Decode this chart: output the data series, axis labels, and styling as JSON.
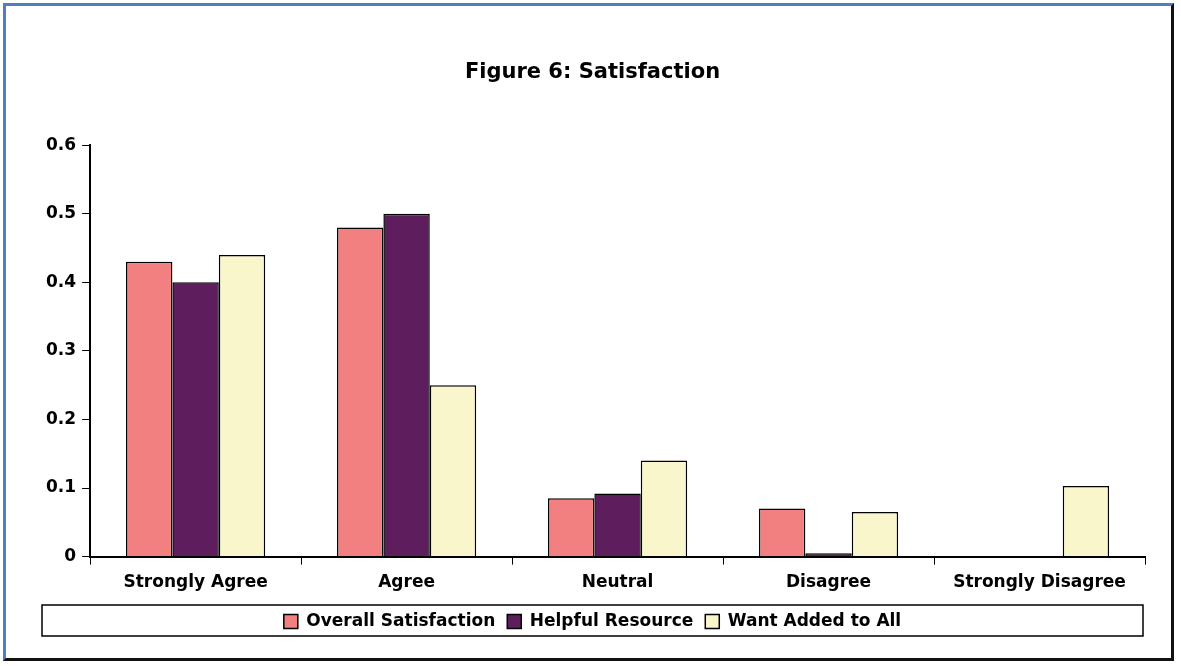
{
  "chart_data": {
    "type": "bar",
    "title": "Figure 6: Satisfaction",
    "categories": [
      "Strongly Agree",
      "Agree",
      "Neutral",
      "Disagree",
      "Strongly Disagree"
    ],
    "series": [
      {
        "name": "Overall Satisfaction",
        "color": "#f28080",
        "values": [
          0.43,
          0.48,
          0.085,
          0.07,
          0
        ]
      },
      {
        "name": "Helpful Resource",
        "color": "#5e1e5e",
        "values": [
          0.4,
          0.5,
          0.092,
          0.005,
          0
        ]
      },
      {
        "name": "Want Added to All",
        "color": "#faf6cc",
        "values": [
          0.44,
          0.25,
          0.14,
          0.065,
          0.103
        ]
      }
    ],
    "ylim": [
      0,
      0.6
    ],
    "yticks": [
      0,
      0.1,
      0.2,
      0.3,
      0.4,
      0.5,
      0.6
    ],
    "grid": false,
    "legend": "bottom"
  }
}
